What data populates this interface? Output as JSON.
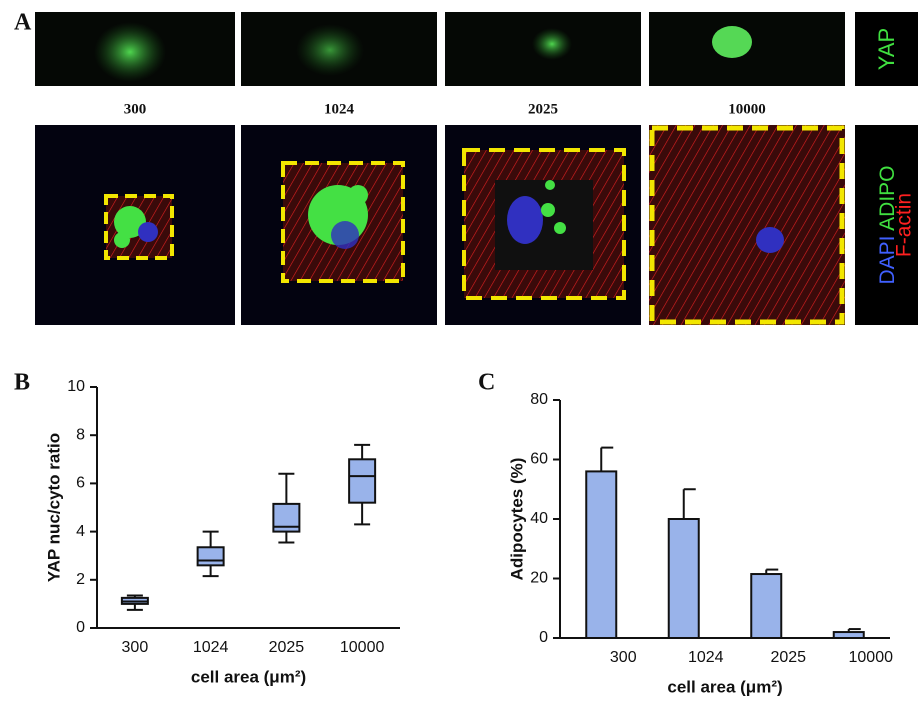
{
  "panel_a": {
    "label": "A",
    "yap_label": "YAP",
    "areas": [
      "300",
      "1024",
      "2025",
      "10000"
    ],
    "stain_labels": [
      "DAPI",
      "ADIPO",
      "F-actin"
    ]
  },
  "chart_data": [
    {
      "type": "box",
      "label": "B",
      "ylabel": "YAP nuc/cyto ratio",
      "xlabel": "cell area (μm²)",
      "categories": [
        "300",
        "1024",
        "2025",
        "10000"
      ],
      "stats": [
        {
          "min": 0.75,
          "q1": 1.0,
          "median": 1.1,
          "q3": 1.25,
          "max": 1.35
        },
        {
          "min": 2.15,
          "q1": 2.6,
          "median": 2.8,
          "q3": 3.35,
          "max": 4.0
        },
        {
          "min": 3.55,
          "q1": 4.0,
          "median": 4.2,
          "q3": 5.15,
          "max": 6.4
        },
        {
          "min": 4.3,
          "q1": 5.2,
          "median": 6.3,
          "q3": 7.0,
          "max": 7.6
        }
      ],
      "color": "#99b3ea",
      "ylim": [
        0,
        10
      ],
      "yticks": [
        0,
        2,
        4,
        6,
        8,
        10
      ]
    },
    {
      "type": "bar",
      "label": "C",
      "ylabel": "Adipocytes (%)",
      "xlabel": "cell area (μm²)",
      "categories": [
        "300",
        "1024",
        "2025",
        "10000"
      ],
      "values": [
        56,
        40,
        21.5,
        2
      ],
      "errors": [
        8,
        10,
        1.5,
        1
      ],
      "color": "#99b3ea",
      "ylim": [
        0,
        80
      ],
      "yticks": [
        0,
        20,
        40,
        60,
        80
      ]
    }
  ]
}
